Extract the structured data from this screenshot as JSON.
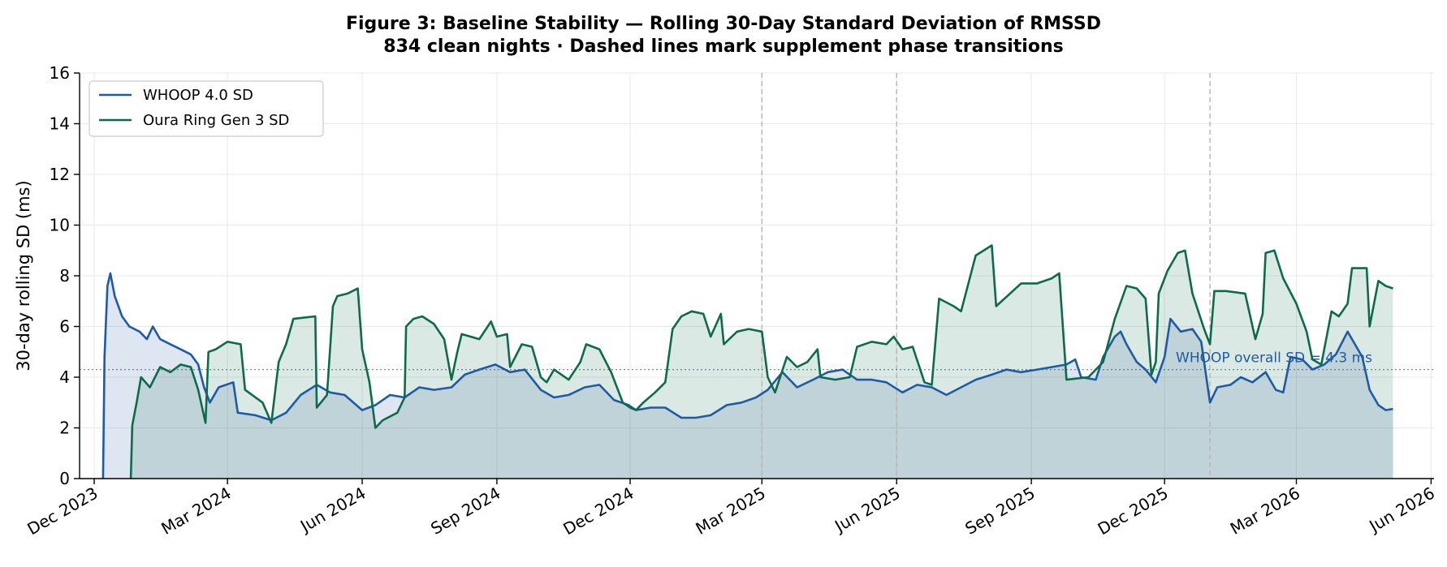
{
  "chart_data": {
    "type": "line",
    "title": "Figure 3: Baseline Stability — Rolling 30-Day Standard Deviation of RMSSD",
    "subtitle": "834 clean nights · Dashed lines mark supplement phase transitions",
    "xlabel": "",
    "ylabel": "30-day rolling SD (ms)",
    "x_axis": {
      "type": "date",
      "range": [
        "2023-11-21",
        "2026-06-03"
      ],
      "ticks": [
        {
          "date": "2023-12-01",
          "label": "Dec 2023"
        },
        {
          "date": "2024-03-01",
          "label": "Mar 2024"
        },
        {
          "date": "2024-06-01",
          "label": "Jun 2024"
        },
        {
          "date": "2024-09-01",
          "label": "Sep 2024"
        },
        {
          "date": "2024-12-01",
          "label": "Dec 2024"
        },
        {
          "date": "2025-03-01",
          "label": "Mar 2025"
        },
        {
          "date": "2025-06-01",
          "label": "Jun 2025"
        },
        {
          "date": "2025-09-01",
          "label": "Sep 2025"
        },
        {
          "date": "2025-12-01",
          "label": "Dec 2025"
        },
        {
          "date": "2026-03-01",
          "label": "Mar 2026"
        },
        {
          "date": "2026-06-01",
          "label": "Jun 2026"
        }
      ]
    },
    "ylim": [
      0,
      16
    ],
    "yticks": [
      0,
      2,
      4,
      6,
      8,
      10,
      12,
      14,
      16
    ],
    "grid": true,
    "legend_position": "top-left",
    "phase_transitions": [
      "2025-03-01",
      "2025-06-01",
      "2026-01-01"
    ],
    "reference_line": {
      "value": 4.3,
      "label": "WHOOP overall SD = 4.3 ms",
      "color": "#1f5aa6"
    },
    "series": [
      {
        "name": "WHOOP 4.0 SD",
        "color": "#1f5aa6",
        "fill": "#dce5f0",
        "points": [
          [
            "2023-12-07",
            0.0
          ],
          [
            "2023-12-08",
            4.8
          ],
          [
            "2023-12-10",
            7.6
          ],
          [
            "2023-12-12",
            8.1
          ],
          [
            "2023-12-15",
            7.2
          ],
          [
            "2023-12-20",
            6.4
          ],
          [
            "2023-12-25",
            6.0
          ],
          [
            "2024-01-01",
            5.8
          ],
          [
            "2024-01-06",
            5.5
          ],
          [
            "2024-01-10",
            6.0
          ],
          [
            "2024-01-15",
            5.5
          ],
          [
            "2024-01-22",
            5.3
          ],
          [
            "2024-01-29",
            5.1
          ],
          [
            "2024-02-05",
            4.9
          ],
          [
            "2024-02-10",
            4.5
          ],
          [
            "2024-02-14",
            3.6
          ],
          [
            "2024-02-18",
            3.0
          ],
          [
            "2024-02-24",
            3.6
          ],
          [
            "2024-03-05",
            3.8
          ],
          [
            "2024-03-08",
            2.6
          ],
          [
            "2024-03-20",
            2.5
          ],
          [
            "2024-03-31",
            2.3
          ],
          [
            "2024-04-10",
            2.6
          ],
          [
            "2024-04-20",
            3.3
          ],
          [
            "2024-05-01",
            3.7
          ],
          [
            "2024-05-10",
            3.4
          ],
          [
            "2024-05-20",
            3.3
          ],
          [
            "2024-06-01",
            2.7
          ],
          [
            "2024-06-10",
            2.9
          ],
          [
            "2024-06-20",
            3.3
          ],
          [
            "2024-06-30",
            3.2
          ],
          [
            "2024-07-10",
            3.6
          ],
          [
            "2024-07-20",
            3.5
          ],
          [
            "2024-08-01",
            3.6
          ],
          [
            "2024-08-10",
            4.1
          ],
          [
            "2024-08-20",
            4.3
          ],
          [
            "2024-08-31",
            4.5
          ],
          [
            "2024-09-10",
            4.2
          ],
          [
            "2024-09-20",
            4.3
          ],
          [
            "2024-10-01",
            3.5
          ],
          [
            "2024-10-10",
            3.2
          ],
          [
            "2024-10-20",
            3.3
          ],
          [
            "2024-10-31",
            3.6
          ],
          [
            "2024-11-10",
            3.7
          ],
          [
            "2024-11-20",
            3.1
          ],
          [
            "2024-11-30",
            2.9
          ],
          [
            "2024-12-05",
            2.7
          ],
          [
            "2024-12-15",
            2.8
          ],
          [
            "2024-12-25",
            2.8
          ],
          [
            "2025-01-05",
            2.4
          ],
          [
            "2025-01-15",
            2.4
          ],
          [
            "2025-01-25",
            2.5
          ],
          [
            "2025-02-05",
            2.9
          ],
          [
            "2025-02-15",
            3.0
          ],
          [
            "2025-02-25",
            3.2
          ],
          [
            "2025-03-05",
            3.5
          ],
          [
            "2025-03-15",
            4.2
          ],
          [
            "2025-03-25",
            3.6
          ],
          [
            "2025-04-05",
            3.9
          ],
          [
            "2025-04-15",
            4.2
          ],
          [
            "2025-04-25",
            4.3
          ],
          [
            "2025-05-05",
            3.9
          ],
          [
            "2025-05-15",
            3.9
          ],
          [
            "2025-05-25",
            3.8
          ],
          [
            "2025-06-05",
            3.4
          ],
          [
            "2025-06-15",
            3.7
          ],
          [
            "2025-06-25",
            3.6
          ],
          [
            "2025-07-05",
            3.3
          ],
          [
            "2025-07-15",
            3.6
          ],
          [
            "2025-07-25",
            3.9
          ],
          [
            "2025-08-05",
            4.1
          ],
          [
            "2025-08-15",
            4.3
          ],
          [
            "2025-08-25",
            4.2
          ],
          [
            "2025-09-05",
            4.3
          ],
          [
            "2025-09-15",
            4.4
          ],
          [
            "2025-09-25",
            4.5
          ],
          [
            "2025-10-01",
            4.7
          ],
          [
            "2025-10-05",
            4.0
          ],
          [
            "2025-10-15",
            3.9
          ],
          [
            "2025-10-20",
            4.8
          ],
          [
            "2025-10-28",
            5.6
          ],
          [
            "2025-11-01",
            5.8
          ],
          [
            "2025-11-05",
            5.3
          ],
          [
            "2025-11-12",
            4.6
          ],
          [
            "2025-11-18",
            4.3
          ],
          [
            "2025-11-25",
            3.8
          ],
          [
            "2025-12-01",
            4.8
          ],
          [
            "2025-12-05",
            6.3
          ],
          [
            "2025-12-12",
            5.8
          ],
          [
            "2025-12-20",
            5.9
          ],
          [
            "2025-12-26",
            5.4
          ],
          [
            "2026-01-01",
            3.0
          ],
          [
            "2026-01-06",
            3.6
          ],
          [
            "2026-01-15",
            3.7
          ],
          [
            "2026-01-22",
            4.0
          ],
          [
            "2026-01-30",
            3.8
          ],
          [
            "2026-02-08",
            4.2
          ],
          [
            "2026-02-15",
            3.5
          ],
          [
            "2026-02-20",
            3.4
          ],
          [
            "2026-02-25",
            4.8
          ],
          [
            "2026-03-05",
            4.7
          ],
          [
            "2026-03-12",
            4.3
          ],
          [
            "2026-03-20",
            4.5
          ],
          [
            "2026-03-28",
            4.9
          ],
          [
            "2026-04-05",
            5.8
          ],
          [
            "2026-04-10",
            5.3
          ],
          [
            "2026-04-15",
            4.8
          ],
          [
            "2026-04-20",
            3.5
          ],
          [
            "2026-04-26",
            2.9
          ],
          [
            "2026-05-01",
            2.7
          ],
          [
            "2026-05-06",
            2.75
          ]
        ]
      },
      {
        "name": "Oura Ring Gen 3 SD",
        "color": "#0e6b4a",
        "fill": "#cfe3dc",
        "points": [
          [
            "2023-12-26",
            0.0
          ],
          [
            "2023-12-27",
            2.1
          ],
          [
            "2023-12-30",
            3.0
          ],
          [
            "2024-01-02",
            4.0
          ],
          [
            "2024-01-08",
            3.6
          ],
          [
            "2024-01-15",
            4.4
          ],
          [
            "2024-01-22",
            4.2
          ],
          [
            "2024-01-29",
            4.5
          ],
          [
            "2024-02-05",
            4.4
          ],
          [
            "2024-02-10",
            3.5
          ],
          [
            "2024-02-15",
            2.2
          ],
          [
            "2024-02-17",
            5.0
          ],
          [
            "2024-02-22",
            5.1
          ],
          [
            "2024-03-01",
            5.4
          ],
          [
            "2024-03-10",
            5.3
          ],
          [
            "2024-03-13",
            3.5
          ],
          [
            "2024-03-25",
            3.0
          ],
          [
            "2024-03-31",
            2.2
          ],
          [
            "2024-04-05",
            4.6
          ],
          [
            "2024-04-10",
            5.3
          ],
          [
            "2024-04-15",
            6.3
          ],
          [
            "2024-04-30",
            6.4
          ],
          [
            "2024-05-01",
            2.8
          ],
          [
            "2024-05-08",
            3.3
          ],
          [
            "2024-05-12",
            6.8
          ],
          [
            "2024-05-15",
            7.2
          ],
          [
            "2024-05-22",
            7.3
          ],
          [
            "2024-05-29",
            7.5
          ],
          [
            "2024-06-01",
            5.1
          ],
          [
            "2024-06-06",
            3.8
          ],
          [
            "2024-06-10",
            2.0
          ],
          [
            "2024-06-15",
            2.3
          ],
          [
            "2024-06-25",
            2.6
          ],
          [
            "2024-06-30",
            3.2
          ],
          [
            "2024-07-01",
            6.0
          ],
          [
            "2024-07-06",
            6.3
          ],
          [
            "2024-07-12",
            6.4
          ],
          [
            "2024-07-20",
            6.1
          ],
          [
            "2024-07-27",
            5.5
          ],
          [
            "2024-08-01",
            3.9
          ],
          [
            "2024-08-05",
            5.0
          ],
          [
            "2024-08-08",
            5.7
          ],
          [
            "2024-08-20",
            5.5
          ],
          [
            "2024-08-28",
            6.2
          ],
          [
            "2024-09-01",
            5.6
          ],
          [
            "2024-09-08",
            5.7
          ],
          [
            "2024-09-10",
            4.4
          ],
          [
            "2024-09-18",
            5.3
          ],
          [
            "2024-09-25",
            5.2
          ],
          [
            "2024-10-01",
            4.0
          ],
          [
            "2024-10-05",
            3.8
          ],
          [
            "2024-10-10",
            4.3
          ],
          [
            "2024-10-20",
            3.9
          ],
          [
            "2024-10-28",
            4.6
          ],
          [
            "2024-11-01",
            5.3
          ],
          [
            "2024-11-10",
            5.1
          ],
          [
            "2024-11-18",
            4.2
          ],
          [
            "2024-11-26",
            3.0
          ],
          [
            "2024-12-01",
            2.8
          ],
          [
            "2024-12-05",
            2.7
          ],
          [
            "2024-12-10",
            3.0
          ],
          [
            "2024-12-18",
            3.4
          ],
          [
            "2024-12-25",
            3.8
          ],
          [
            "2024-12-30",
            5.9
          ],
          [
            "2025-01-05",
            6.4
          ],
          [
            "2025-01-12",
            6.6
          ],
          [
            "2025-01-20",
            6.5
          ],
          [
            "2025-01-25",
            5.6
          ],
          [
            "2025-02-01",
            6.5
          ],
          [
            "2025-02-03",
            5.3
          ],
          [
            "2025-02-12",
            5.8
          ],
          [
            "2025-02-20",
            5.9
          ],
          [
            "2025-03-01",
            5.8
          ],
          [
            "2025-03-05",
            4.0
          ],
          [
            "2025-03-10",
            3.4
          ],
          [
            "2025-03-18",
            4.8
          ],
          [
            "2025-03-25",
            4.4
          ],
          [
            "2025-04-01",
            4.6
          ],
          [
            "2025-04-08",
            5.1
          ],
          [
            "2025-04-10",
            4.0
          ],
          [
            "2025-04-20",
            3.9
          ],
          [
            "2025-04-30",
            4.0
          ],
          [
            "2025-05-05",
            5.2
          ],
          [
            "2025-05-15",
            5.4
          ],
          [
            "2025-05-25",
            5.3
          ],
          [
            "2025-05-30",
            5.6
          ],
          [
            "2025-06-05",
            5.1
          ],
          [
            "2025-06-12",
            5.2
          ],
          [
            "2025-06-20",
            3.8
          ],
          [
            "2025-06-25",
            3.7
          ],
          [
            "2025-06-30",
            7.1
          ],
          [
            "2025-07-10",
            6.8
          ],
          [
            "2025-07-15",
            6.6
          ],
          [
            "2025-07-25",
            8.8
          ],
          [
            "2025-08-05",
            9.2
          ],
          [
            "2025-08-08",
            6.8
          ],
          [
            "2025-08-25",
            7.7
          ],
          [
            "2025-09-05",
            7.7
          ],
          [
            "2025-09-15",
            7.9
          ],
          [
            "2025-09-20",
            8.1
          ],
          [
            "2025-09-25",
            3.9
          ],
          [
            "2025-10-10",
            4.0
          ],
          [
            "2025-10-20",
            4.6
          ],
          [
            "2025-10-28",
            6.3
          ],
          [
            "2025-11-05",
            7.6
          ],
          [
            "2025-11-12",
            7.5
          ],
          [
            "2025-11-18",
            7.1
          ],
          [
            "2025-11-22",
            4.1
          ],
          [
            "2025-11-25",
            4.6
          ],
          [
            "2025-11-27",
            7.3
          ],
          [
            "2025-12-03",
            8.2
          ],
          [
            "2025-12-10",
            8.9
          ],
          [
            "2025-12-15",
            9.0
          ],
          [
            "2025-12-20",
            7.3
          ],
          [
            "2025-12-28",
            5.9
          ],
          [
            "2026-01-01",
            5.3
          ],
          [
            "2026-01-04",
            7.4
          ],
          [
            "2026-01-12",
            7.4
          ],
          [
            "2026-01-25",
            7.3
          ],
          [
            "2026-02-01",
            5.5
          ],
          [
            "2026-02-06",
            6.5
          ],
          [
            "2026-02-08",
            8.9
          ],
          [
            "2026-02-14",
            9.0
          ],
          [
            "2026-02-20",
            7.9
          ],
          [
            "2026-03-01",
            6.9
          ],
          [
            "2026-03-08",
            5.8
          ],
          [
            "2026-03-12",
            4.7
          ],
          [
            "2026-03-18",
            4.5
          ],
          [
            "2026-03-25",
            6.6
          ],
          [
            "2026-03-30",
            6.4
          ],
          [
            "2026-04-05",
            6.9
          ],
          [
            "2026-04-08",
            8.3
          ],
          [
            "2026-04-18",
            8.3
          ],
          [
            "2026-04-20",
            6.0
          ],
          [
            "2026-04-26",
            7.8
          ],
          [
            "2026-05-01",
            7.6
          ],
          [
            "2026-05-06",
            7.5
          ]
        ]
      }
    ]
  }
}
